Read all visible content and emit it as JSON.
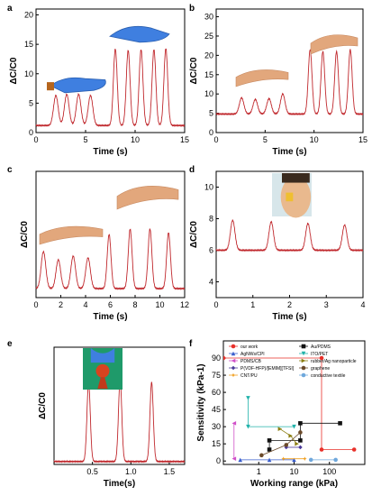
{
  "chart_data": [
    {
      "id": "a",
      "panel_label": "a",
      "type": "line",
      "xlabel": "Time (s)",
      "ylabel": "ΔC/C0",
      "xlim": [
        0,
        15
      ],
      "ylim": [
        0,
        21
      ],
      "xticks": [
        "0",
        "5",
        "10",
        "15"
      ],
      "yticks": [
        "0",
        "5",
        "10",
        "15",
        "20"
      ],
      "series": [
        {
          "color": "#c0282d",
          "baseline": 1.2,
          "peaks": [
            [
              2.0,
              6.3
            ],
            [
              3.1,
              6.5
            ],
            [
              4.3,
              6.5
            ],
            [
              5.5,
              6.3
            ],
            [
              8.0,
              14.2
            ],
            [
              9.3,
              14.0
            ],
            [
              10.6,
              14.1
            ],
            [
              11.9,
              14.1
            ],
            [
              13.1,
              14.3
            ]
          ]
        }
      ]
    },
    {
      "id": "b",
      "panel_label": "b",
      "type": "line",
      "xlabel": "Time (s)",
      "ylabel": "ΔC/C0",
      "xlim": [
        0,
        15
      ],
      "ylim": [
        0,
        32
      ],
      "xticks": [
        "0",
        "5",
        "10",
        "15"
      ],
      "yticks": [
        "0",
        "5",
        "10",
        "15",
        "20",
        "25",
        "30"
      ],
      "series": [
        {
          "color": "#c0282d",
          "baseline": 4.8,
          "peaks": [
            [
              2.6,
              9.0
            ],
            [
              4.0,
              8.6
            ],
            [
              5.4,
              8.8
            ],
            [
              6.8,
              10.0
            ],
            [
              9.6,
              21.5
            ],
            [
              10.9,
              21.0
            ],
            [
              12.3,
              21.0
            ],
            [
              13.7,
              21.5
            ]
          ]
        }
      ]
    },
    {
      "id": "c",
      "panel_label": "c",
      "type": "line",
      "xlabel": "Time (s)",
      "ylabel": "ΔC/C0",
      "xlim": [
        0,
        12
      ],
      "ylim": [
        0,
        14
      ],
      "xticks": [
        "0",
        "2",
        "4",
        "6",
        "8",
        "10",
        "12"
      ],
      "yticks": [],
      "series": [
        {
          "color": "#c0282d",
          "baseline": 1.0,
          "peaks": [
            [
              0.6,
              5.1
            ],
            [
              1.8,
              4.2
            ],
            [
              3.0,
              4.6
            ],
            [
              4.2,
              4.4
            ],
            [
              5.9,
              7.0
            ],
            [
              7.6,
              7.6
            ],
            [
              9.2,
              7.6
            ],
            [
              10.7,
              7.2
            ]
          ]
        }
      ]
    },
    {
      "id": "d",
      "panel_label": "d",
      "type": "line",
      "xlabel": "Time (s)",
      "ylabel": "ΔC/C0",
      "xlim": [
        0,
        4
      ],
      "ylim": [
        3,
        11
      ],
      "xticks": [
        "0",
        "1",
        "2",
        "3",
        "4"
      ],
      "yticks": [
        "4",
        "6",
        "8",
        "10"
      ],
      "series": [
        {
          "color": "#c0282d",
          "baseline": 6.0,
          "peaks": [
            [
              0.45,
              7.9
            ],
            [
              1.5,
              7.8
            ],
            [
              2.5,
              7.7
            ],
            [
              3.5,
              7.6
            ]
          ]
        }
      ]
    },
    {
      "id": "e",
      "panel_label": "e",
      "type": "line",
      "xlabel": "Time(s)",
      "ylabel": "ΔC/C0",
      "xlim": [
        0,
        1.7
      ],
      "ylim": [
        0,
        2.0
      ],
      "xticks": [
        "0.5",
        "1.0",
        "1.5"
      ],
      "yticks": [],
      "series": [
        {
          "color": "#c0282d",
          "baseline": 0.05,
          "peaks": [
            [
              0.45,
              1.4
            ],
            [
              0.86,
              1.45
            ],
            [
              1.27,
              1.4
            ]
          ]
        }
      ]
    },
    {
      "id": "f",
      "panel_label": "f",
      "type": "scatter",
      "xlabel": "Working range (kPa)",
      "ylabel": "Sensitivity (kPa-1)",
      "xscale": "log",
      "xlim": [
        0.1,
        1000
      ],
      "ylim": [
        -3,
        105
      ],
      "xticks": [
        "1",
        "10",
        "100"
      ],
      "yticks": [
        "0",
        "15",
        "30",
        "45",
        "60",
        "75",
        "90"
      ],
      "legend": [
        {
          "name": "our work",
          "color": "#e8302a",
          "marker": "circle"
        },
        {
          "name": "Au/PDMS",
          "color": "#111111",
          "marker": "square"
        },
        {
          "name": "AgNWs/CPI",
          "color": "#3a5fcd",
          "marker": "triangle"
        },
        {
          "name": "ITO/PET",
          "color": "#20b2aa",
          "marker": "triangle-down"
        },
        {
          "name": "PDMS/CB",
          "color": "#d04fc8",
          "marker": "triangle-left"
        },
        {
          "name": "rubber/Ag nanoparticle",
          "color": "#8b7d10",
          "marker": "triangle-right"
        },
        {
          "name": "P(VDF-HFP)/[EMIM][TFSI]",
          "color": "#4b3a9a",
          "marker": "diamond"
        },
        {
          "name": "graphene",
          "color": "#6b4a2a",
          "marker": "circle"
        },
        {
          "name": "CNT/PU",
          "color": "#f0a020",
          "marker": "star"
        },
        {
          "name": "conductive textile",
          "color": "#6fa8dc",
          "marker": "circle"
        }
      ],
      "points": [
        {
          "series": "our work",
          "x": [
            0.1,
            60,
            60,
            500
          ],
          "y": [
            90,
            90,
            10,
            10
          ]
        },
        {
          "series": "Au/PDMS",
          "x": [
            2,
            2,
            15,
            15,
            200
          ],
          "y": [
            10,
            18,
            18,
            33,
            33
          ]
        },
        {
          "series": "AgNWs/CPI",
          "x": [
            0.3,
            2,
            10
          ],
          "y": [
            1,
            1,
            1
          ]
        },
        {
          "series": "ITO/PET",
          "x": [
            0.5,
            0.5,
            10
          ],
          "y": [
            55,
            30,
            30
          ]
        },
        {
          "series": "PDMS/CB",
          "x": [
            0.2,
            0.2
          ],
          "y": [
            33,
            2
          ]
        },
        {
          "series": "rubber/Ag nanoparticle",
          "x": [
            4,
            8,
            12
          ],
          "y": [
            28,
            22,
            15
          ]
        },
        {
          "series": "P(VDF-HFP)/[EMIM][TFSI]",
          "x": [
            6,
            15
          ],
          "y": [
            12,
            12
          ]
        },
        {
          "series": "graphene",
          "x": [
            1.2,
            6,
            15
          ],
          "y": [
            5,
            14,
            25
          ]
        },
        {
          "series": "CNT/PU",
          "x": [
            5,
            20
          ],
          "y": [
            2,
            2
          ]
        },
        {
          "series": "conductive textile",
          "x": [
            30,
            150
          ],
          "y": [
            1,
            1
          ]
        }
      ]
    }
  ]
}
